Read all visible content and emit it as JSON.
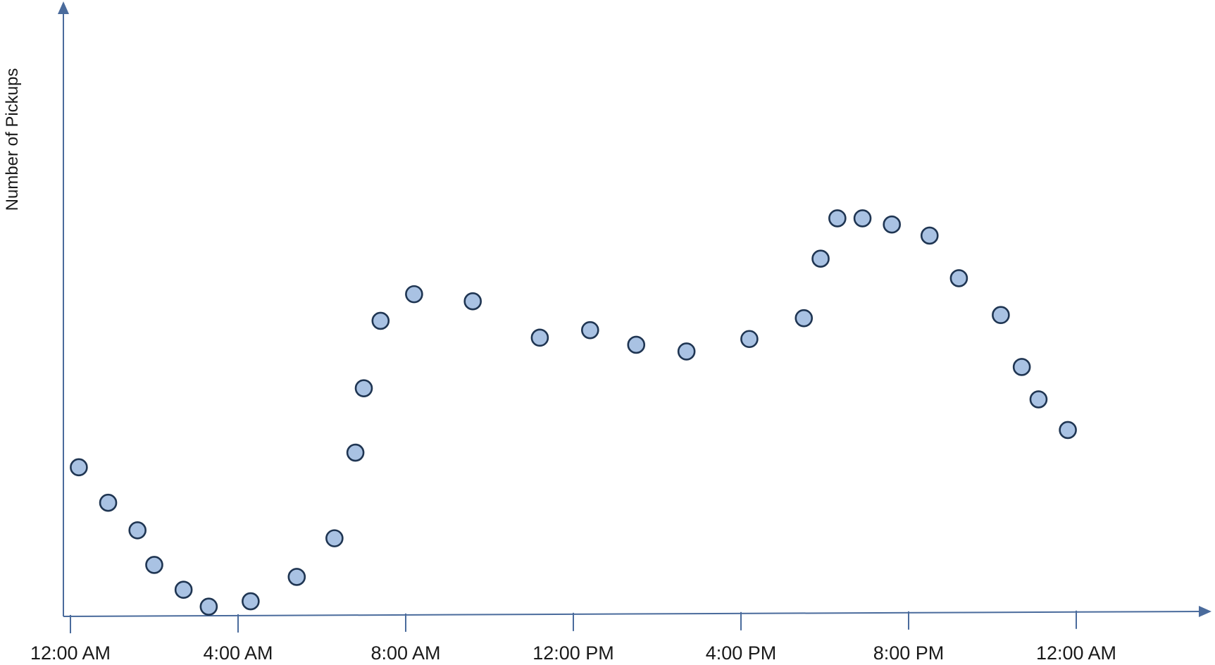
{
  "chart_data": {
    "type": "scatter",
    "title": "",
    "xlabel": "",
    "ylabel": "Number of Pickups",
    "x_ticks": [
      {
        "value": 0,
        "label": "12:00 AM"
      },
      {
        "value": 4,
        "label": "4:00 AM"
      },
      {
        "value": 8,
        "label": "8:00 AM"
      },
      {
        "value": 12,
        "label": "12:00 PM"
      },
      {
        "value": 16,
        "label": "4:00 PM"
      },
      {
        "value": 20,
        "label": "8:00 PM"
      },
      {
        "value": 24,
        "label": "12:00 AM"
      }
    ],
    "xlim": [
      0,
      27.5
    ],
    "ylim": [
      0,
      100
    ],
    "grid": false,
    "legend": "none",
    "point_color": "#a9c2e3",
    "point_edge_color": "#1f3552",
    "axis_color": "#4a6b9c",
    "points": [
      {
        "x": 0.2,
        "y": 33.6
      },
      {
        "x": 0.9,
        "y": 25.6
      },
      {
        "x": 1.6,
        "y": 19.4
      },
      {
        "x": 2.0,
        "y": 11.6
      },
      {
        "x": 2.7,
        "y": 6.0
      },
      {
        "x": 3.3,
        "y": 2.2
      },
      {
        "x": 4.3,
        "y": 3.4
      },
      {
        "x": 5.4,
        "y": 8.9
      },
      {
        "x": 6.3,
        "y": 17.6
      },
      {
        "x": 6.8,
        "y": 36.9
      },
      {
        "x": 7.0,
        "y": 51.4
      },
      {
        "x": 7.4,
        "y": 66.6
      },
      {
        "x": 8.2,
        "y": 72.6
      },
      {
        "x": 9.6,
        "y": 71.0
      },
      {
        "x": 11.2,
        "y": 62.8
      },
      {
        "x": 12.4,
        "y": 64.5
      },
      {
        "x": 13.5,
        "y": 61.2
      },
      {
        "x": 14.7,
        "y": 59.7
      },
      {
        "x": 16.2,
        "y": 62.5
      },
      {
        "x": 17.5,
        "y": 67.2
      },
      {
        "x": 17.9,
        "y": 80.6
      },
      {
        "x": 18.3,
        "y": 89.7
      },
      {
        "x": 18.9,
        "y": 89.7
      },
      {
        "x": 19.6,
        "y": 88.3
      },
      {
        "x": 20.5,
        "y": 85.8
      },
      {
        "x": 21.2,
        "y": 76.2
      },
      {
        "x": 22.2,
        "y": 67.9
      },
      {
        "x": 22.7,
        "y": 56.2
      },
      {
        "x": 23.1,
        "y": 48.9
      },
      {
        "x": 23.8,
        "y": 42.0
      }
    ]
  }
}
